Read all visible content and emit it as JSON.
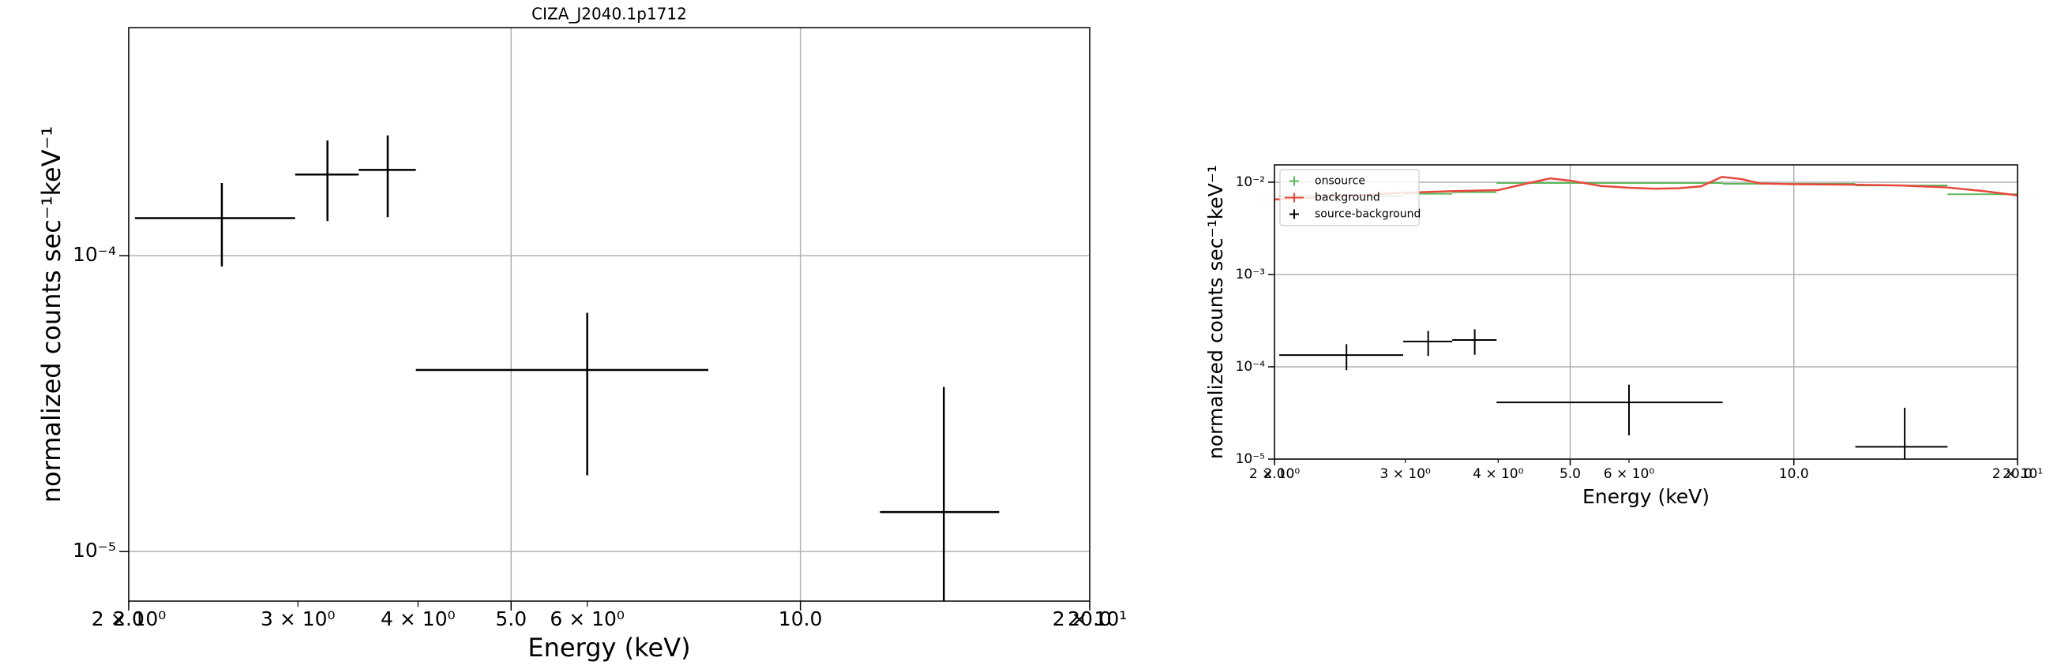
{
  "chart_data": [
    {
      "type": "errorbar",
      "title": "CIZA_J2040.1p1712",
      "x_label": "Energy (keV)",
      "y_label": "normalized counts sec⁻¹keV⁻¹",
      "xscale": "log",
      "yscale": "log",
      "grid": true,
      "xlim": [
        2,
        20
      ],
      "ylim": [
        6.8e-06,
        0.00059
      ],
      "xticks": [
        {
          "value": 2,
          "label": "2.0"
        },
        {
          "value": 5,
          "label": "5.0"
        },
        {
          "value": 10,
          "label": "10.0"
        },
        {
          "value": 20,
          "label": "20.0"
        }
      ],
      "xminorticks": [
        {
          "value": 2,
          "label": "2 × 10⁰"
        },
        {
          "value": 3,
          "label": "3 × 10⁰"
        },
        {
          "value": 4,
          "label": "4 × 10⁰"
        },
        {
          "value": 6,
          "label": "6 × 10⁰"
        },
        {
          "value": 20,
          "label": "2 × 10¹"
        }
      ],
      "yticks": [
        {
          "value": 1e-05,
          "label": "10⁻⁵"
        },
        {
          "value": 0.0001,
          "label": "10⁻⁴"
        }
      ],
      "series": [
        {
          "style": "errorbar",
          "color": "#000000",
          "x": [
            2.5,
            3.22,
            3.72,
            6.0,
            14.1
          ],
          "xlo": [
            2.03,
            2.98,
            3.47,
            3.98,
            12.1
          ],
          "xhi": [
            2.98,
            3.47,
            3.98,
            8.02,
            16.1
          ],
          "values": [
            0.000134,
            0.000188,
            0.000195,
            4.11e-05,
            1.36e-05
          ],
          "yerr": [
            4.2e-05,
            5.7e-05,
            6e-05,
            2.3e-05,
            2.24e-05
          ]
        }
      ]
    },
    {
      "type": "errorbar",
      "x_label": "Energy (keV)",
      "y_label": "normalized counts sec⁻¹keV⁻¹",
      "xscale": "log",
      "yscale": "log",
      "grid": true,
      "legend": "upper left",
      "xlim": [
        2,
        20
      ],
      "ylim": [
        1e-05,
        0.0154
      ],
      "xticks": [
        {
          "value": 2,
          "label": "2.0"
        },
        {
          "value": 5,
          "label": "5.0"
        },
        {
          "value": 10,
          "label": "10.0"
        },
        {
          "value": 20,
          "label": "20.0"
        }
      ],
      "xminorticks": [
        {
          "value": 2,
          "label": "2 × 10⁰"
        },
        {
          "value": 3,
          "label": "3 × 10⁰"
        },
        {
          "value": 4,
          "label": "4 × 10⁰"
        },
        {
          "value": 6,
          "label": "6 × 10⁰"
        },
        {
          "value": 20,
          "label": "2 × 10¹"
        }
      ],
      "yticks": [
        {
          "value": 1e-05,
          "label": "10⁻⁵"
        },
        {
          "value": 0.0001,
          "label": "10⁻⁴"
        },
        {
          "value": 0.001,
          "label": "10⁻³"
        },
        {
          "value": 0.01,
          "label": "10⁻²"
        }
      ],
      "series": [
        {
          "name": "onsource",
          "style": "errorbar",
          "color": "#5cb85c",
          "x": [
            2.5,
            3.22,
            3.72,
            6.0,
            10.0,
            14.1,
            18.0
          ],
          "xlo": [
            2.03,
            2.98,
            3.47,
            3.98,
            8.02,
            12.1,
            16.1
          ],
          "xhi": [
            2.98,
            3.47,
            3.98,
            8.02,
            12.1,
            16.1,
            20.0
          ],
          "values": [
            0.0071,
            0.0075,
            0.0078,
            0.0098,
            0.0096,
            0.0092,
            0.0074
          ]
        },
        {
          "name": "background",
          "style": "line",
          "color": "#e8473b",
          "x": [
            2.0,
            2.5,
            3.0,
            3.5,
            4.0,
            4.4,
            4.7,
            5.0,
            5.5,
            6.0,
            6.5,
            7.0,
            7.5,
            8.0,
            8.5,
            9.0,
            10.0,
            12.0,
            14.0,
            16.0,
            18.0,
            20.0
          ],
          "values": [
            0.0065,
            0.0071,
            0.0077,
            0.008,
            0.0082,
            0.0098,
            0.011,
            0.0104,
            0.0091,
            0.0087,
            0.0085,
            0.0086,
            0.009,
            0.0114,
            0.0108,
            0.0097,
            0.0095,
            0.0094,
            0.0092,
            0.0088,
            0.008,
            0.0072
          ]
        },
        {
          "name": "source-background",
          "style": "errorbar",
          "color": "#000000",
          "x": [
            2.5,
            3.22,
            3.72,
            6.0,
            14.1
          ],
          "xlo": [
            2.03,
            2.98,
            3.47,
            3.98,
            12.1
          ],
          "xhi": [
            2.98,
            3.47,
            3.98,
            8.02,
            16.1
          ],
          "values": [
            0.000134,
            0.000188,
            0.000195,
            4.11e-05,
            1.36e-05
          ],
          "yerr": [
            4.2e-05,
            5.7e-05,
            6e-05,
            2.3e-05,
            2.24e-05
          ]
        }
      ]
    }
  ]
}
